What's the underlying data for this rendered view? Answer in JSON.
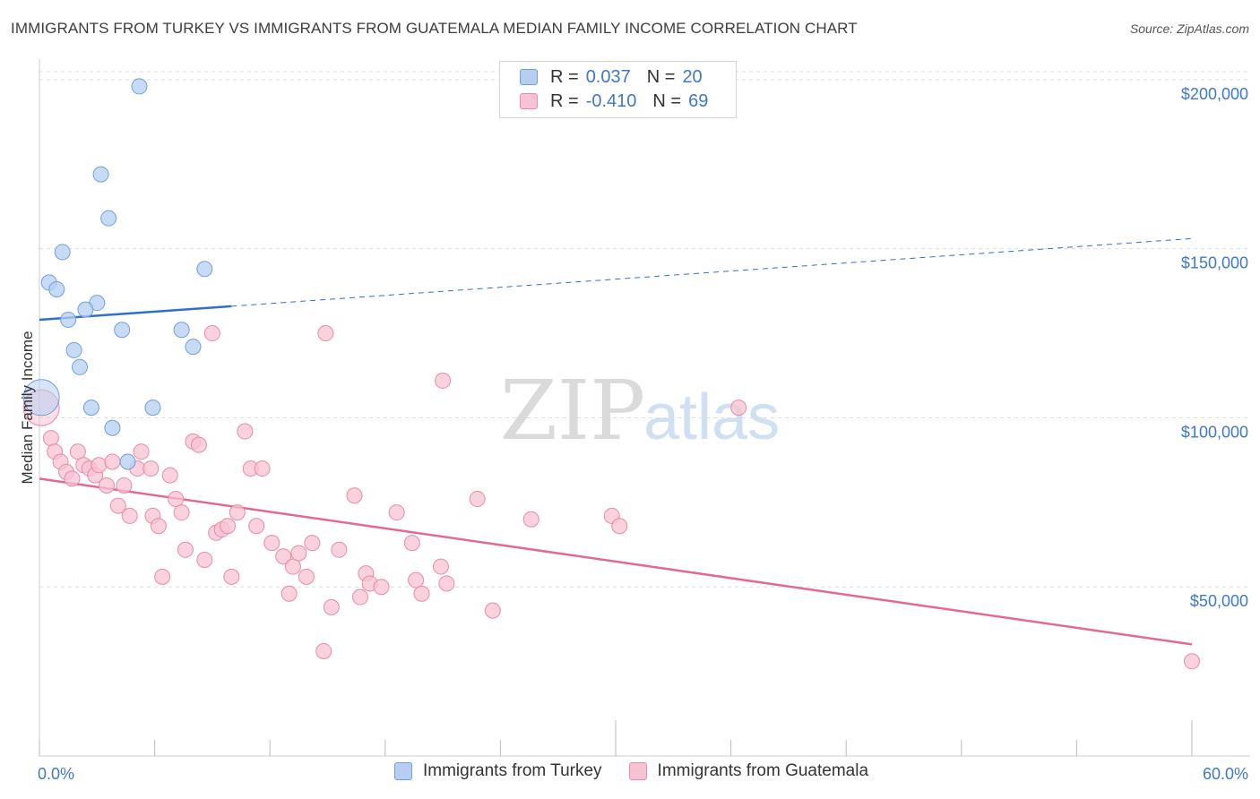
{
  "title": "IMMIGRANTS FROM TURKEY VS IMMIGRANTS FROM GUATEMALA MEDIAN FAMILY INCOME CORRELATION CHART",
  "source": "Source: ZipAtlas.com",
  "watermark": {
    "zip": "ZIP",
    "atlas": "atlas"
  },
  "legend": {
    "turkey": {
      "r_label": "R =",
      "r_value": "0.037",
      "n_label": "N =",
      "n_value": "20"
    },
    "guatemala": {
      "r_label": "R =",
      "r_value": "-0.410",
      "n_label": "N =",
      "n_value": "69"
    }
  },
  "colors": {
    "turkey_fill": "#b6cff0",
    "turkey_stroke": "#6f9fdc",
    "turkey_line": "#2f6fcf",
    "guatemala_fill": "#f7c3d2",
    "guatemala_stroke": "#e98aa8",
    "guatemala_line": "#e06a94",
    "tick_label": "#3d78c9",
    "grid": "#dedede"
  },
  "chart_data": {
    "type": "scatter",
    "title": "IMMIGRANTS FROM TURKEY VS IMMIGRANTS FROM GUATEMALA MEDIAN FAMILY INCOME CORRELATION CHART",
    "xlabel": "",
    "ylabel": "Median Family Income",
    "xlim": [
      0,
      60
    ],
    "ylim": [
      0,
      205000
    ],
    "x_tick_labels": [
      "0.0%",
      "60.0%"
    ],
    "y_ticks": [
      50000,
      100000,
      150000,
      200000
    ],
    "y_tick_labels": [
      "$50,000",
      "$100,000",
      "$150,000",
      "$200,000"
    ],
    "series": [
      {
        "name": "Immigrants from Turkey",
        "points": [
          {
            "x": 5.2,
            "y": 198000
          },
          {
            "x": 3.2,
            "y": 172000
          },
          {
            "x": 3.6,
            "y": 159000
          },
          {
            "x": 1.2,
            "y": 149000
          },
          {
            "x": 8.6,
            "y": 144000
          },
          {
            "x": 0.5,
            "y": 140000
          },
          {
            "x": 0.9,
            "y": 138000
          },
          {
            "x": 3.0,
            "y": 134000
          },
          {
            "x": 2.4,
            "y": 132000
          },
          {
            "x": 1.5,
            "y": 129000
          },
          {
            "x": 4.3,
            "y": 126000
          },
          {
            "x": 7.4,
            "y": 126000
          },
          {
            "x": 8.0,
            "y": 121000
          },
          {
            "x": 1.8,
            "y": 120000
          },
          {
            "x": 2.1,
            "y": 115000
          },
          {
            "x": 0.1,
            "y": 106000
          },
          {
            "x": 2.7,
            "y": 103000
          },
          {
            "x": 5.9,
            "y": 103000
          },
          {
            "x": 3.8,
            "y": 97000
          },
          {
            "x": 4.6,
            "y": 87000
          }
        ],
        "trend": {
          "x0": 0,
          "y0": 129000,
          "x1": 10,
          "y1": 133000,
          "solid_until": 10,
          "dashed_to": 60,
          "y_end": 153000
        }
      },
      {
        "name": "Immigrants from Guatemala",
        "points": [
          {
            "x": 0.1,
            "y": 103000
          },
          {
            "x": 0.6,
            "y": 94000
          },
          {
            "x": 0.8,
            "y": 90000
          },
          {
            "x": 1.1,
            "y": 87000
          },
          {
            "x": 1.4,
            "y": 84000
          },
          {
            "x": 1.7,
            "y": 82000
          },
          {
            "x": 2.0,
            "y": 90000
          },
          {
            "x": 2.3,
            "y": 86000
          },
          {
            "x": 2.6,
            "y": 85000
          },
          {
            "x": 2.9,
            "y": 83000
          },
          {
            "x": 3.1,
            "y": 86000
          },
          {
            "x": 3.5,
            "y": 80000
          },
          {
            "x": 3.8,
            "y": 87000
          },
          {
            "x": 4.1,
            "y": 74000
          },
          {
            "x": 4.4,
            "y": 80000
          },
          {
            "x": 4.7,
            "y": 71000
          },
          {
            "x": 5.1,
            "y": 85000
          },
          {
            "x": 5.3,
            "y": 90000
          },
          {
            "x": 5.8,
            "y": 85000
          },
          {
            "x": 5.9,
            "y": 71000
          },
          {
            "x": 6.2,
            "y": 68000
          },
          {
            "x": 6.4,
            "y": 53000
          },
          {
            "x": 6.8,
            "y": 83000
          },
          {
            "x": 7.1,
            "y": 76000
          },
          {
            "x": 7.4,
            "y": 72000
          },
          {
            "x": 7.6,
            "y": 61000
          },
          {
            "x": 8.0,
            "y": 93000
          },
          {
            "x": 8.3,
            "y": 92000
          },
          {
            "x": 8.6,
            "y": 58000
          },
          {
            "x": 9.0,
            "y": 125000
          },
          {
            "x": 9.2,
            "y": 66000
          },
          {
            "x": 9.5,
            "y": 67000
          },
          {
            "x": 9.8,
            "y": 68000
          },
          {
            "x": 10.0,
            "y": 53000
          },
          {
            "x": 10.3,
            "y": 72000
          },
          {
            "x": 10.7,
            "y": 96000
          },
          {
            "x": 11.0,
            "y": 85000
          },
          {
            "x": 11.3,
            "y": 68000
          },
          {
            "x": 11.6,
            "y": 85000
          },
          {
            "x": 12.1,
            "y": 63000
          },
          {
            "x": 12.7,
            "y": 59000
          },
          {
            "x": 13.0,
            "y": 48000
          },
          {
            "x": 13.2,
            "y": 56000
          },
          {
            "x": 13.5,
            "y": 60000
          },
          {
            "x": 13.9,
            "y": 53000
          },
          {
            "x": 14.2,
            "y": 63000
          },
          {
            "x": 14.8,
            "y": 31000
          },
          {
            "x": 14.9,
            "y": 125000
          },
          {
            "x": 15.2,
            "y": 44000
          },
          {
            "x": 15.6,
            "y": 61000
          },
          {
            "x": 16.4,
            "y": 77000
          },
          {
            "x": 16.7,
            "y": 47000
          },
          {
            "x": 17.0,
            "y": 54000
          },
          {
            "x": 17.2,
            "y": 51000
          },
          {
            "x": 17.8,
            "y": 50000
          },
          {
            "x": 18.6,
            "y": 72000
          },
          {
            "x": 19.4,
            "y": 63000
          },
          {
            "x": 19.6,
            "y": 52000
          },
          {
            "x": 19.9,
            "y": 48000
          },
          {
            "x": 20.9,
            "y": 56000
          },
          {
            "x": 21.2,
            "y": 51000
          },
          {
            "x": 21.0,
            "y": 111000
          },
          {
            "x": 22.8,
            "y": 76000
          },
          {
            "x": 23.6,
            "y": 43000
          },
          {
            "x": 25.6,
            "y": 70000
          },
          {
            "x": 29.8,
            "y": 71000
          },
          {
            "x": 30.2,
            "y": 68000
          },
          {
            "x": 36.4,
            "y": 103000
          },
          {
            "x": 60.0,
            "y": 28000
          }
        ],
        "trend": {
          "x0": 0,
          "y0": 82000,
          "x1": 60,
          "y1": 33000
        }
      }
    ],
    "legend": [
      "Immigrants from Turkey",
      "Immigrants from Guatemala"
    ],
    "legend_position": "bottom"
  }
}
